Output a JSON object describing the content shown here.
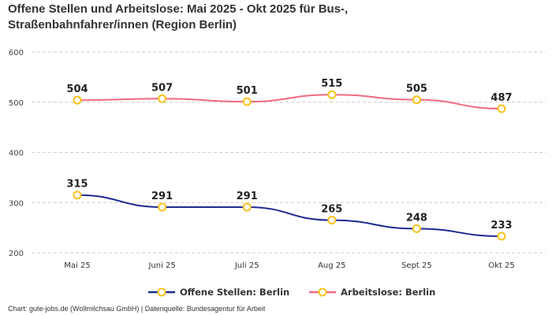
{
  "chart_data": {
    "type": "line",
    "title": "Offene Stellen und Arbeitslose: Mai 2025 - Okt 2025 für Bus-, Straßenbahnfahrer/innen (Region Berlin)",
    "categories": [
      "Mai 25",
      "Juni 25",
      "Juli 25",
      "Aug 25",
      "Sept 25",
      "Okt 25"
    ],
    "ylim": [
      200,
      600
    ],
    "yticks": [
      200,
      300,
      400,
      500,
      600
    ],
    "grid": true,
    "legend_position": "bottom",
    "series": [
      {
        "name": "Offene Stellen: Berlin",
        "values": [
          315,
          291,
          291,
          265,
          248,
          233
        ],
        "color": "#1b2a8f"
      },
      {
        "name": "Arbeitslose: Berlin",
        "values": [
          504,
          507,
          501,
          515,
          505,
          487
        ],
        "color": "#f06a80"
      }
    ],
    "marker_color": "#f7c21d"
  },
  "footer": "Chart: gute-jobs.de (Wollmilchsau GmbH) | Datenquelle: Bundesagentur für Arbeit"
}
